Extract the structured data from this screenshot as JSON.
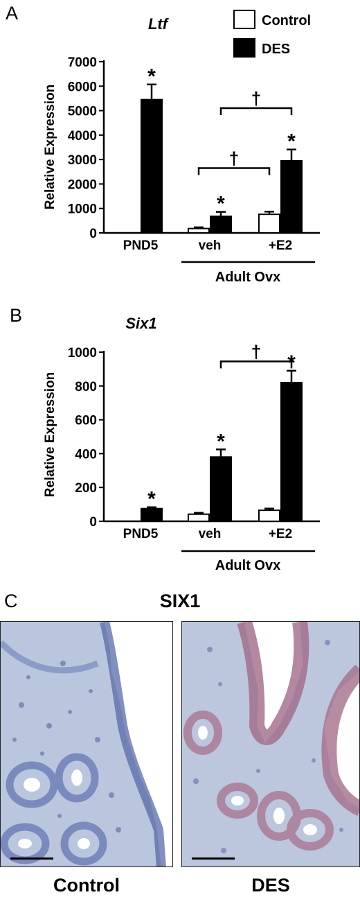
{
  "chart_data": [
    {
      "type": "bar",
      "panel": "A",
      "title": "Ltf",
      "ylabel": "Relative Expression",
      "ylim": [
        0,
        7000
      ],
      "yticks": [
        0,
        1000,
        2000,
        3000,
        4000,
        5000,
        6000,
        7000
      ],
      "categories": [
        "PND5",
        "veh",
        "+E2"
      ],
      "group_label": "Adult Ovx",
      "series": [
        {
          "name": "Control",
          "color": "#ffffff",
          "values": [
            0,
            180,
            760
          ],
          "errors": [
            0,
            50,
            110
          ]
        },
        {
          "name": "DES",
          "color": "#000000",
          "values": [
            5450,
            680,
            2950
          ],
          "errors": [
            620,
            180,
            460
          ]
        }
      ],
      "significance": [
        {
          "category": "PND5",
          "series": "DES",
          "mark": "*"
        },
        {
          "category": "veh",
          "series": "DES",
          "mark": "*"
        },
        {
          "category": "+E2",
          "series": "DES",
          "mark": "*"
        }
      ],
      "brackets": [
        {
          "from": {
            "category": "veh",
            "series": "Control"
          },
          "to": {
            "category": "+E2",
            "series": "Control"
          },
          "mark": "†"
        },
        {
          "from": {
            "category": "veh",
            "series": "DES"
          },
          "to": {
            "category": "+E2",
            "series": "DES"
          },
          "mark": "†"
        }
      ]
    },
    {
      "type": "bar",
      "panel": "B",
      "title": "Six1",
      "ylabel": "Relative Expression",
      "ylim": [
        0,
        1000
      ],
      "yticks": [
        0,
        200,
        400,
        600,
        800,
        1000
      ],
      "categories": [
        "PND5",
        "veh",
        "+E2"
      ],
      "group_label": "Adult Ovx",
      "series": [
        {
          "name": "Control",
          "color": "#ffffff",
          "values": [
            2,
            42,
            65
          ],
          "errors": [
            0,
            8,
            10
          ]
        },
        {
          "name": "DES",
          "color": "#000000",
          "values": [
            75,
            380,
            820
          ],
          "errors": [
            8,
            45,
            70
          ]
        }
      ],
      "significance": [
        {
          "category": "PND5",
          "series": "DES",
          "mark": "*"
        },
        {
          "category": "veh",
          "series": "DES",
          "mark": "*"
        },
        {
          "category": "+E2",
          "series": "DES",
          "mark": "*"
        }
      ],
      "brackets": [
        {
          "from": {
            "category": "veh",
            "series": "DES"
          },
          "to": {
            "category": "+E2",
            "series": "DES"
          },
          "mark": "†"
        }
      ]
    }
  ],
  "legend": [
    {
      "label": "Control",
      "color": "#ffffff"
    },
    {
      "label": "DES",
      "color": "#000000"
    }
  ],
  "panel_c": {
    "letter": "C",
    "title": "SIX1",
    "images": [
      {
        "caption": "Control",
        "stain": "blue"
      },
      {
        "caption": "DES",
        "stain": "red"
      }
    ]
  }
}
